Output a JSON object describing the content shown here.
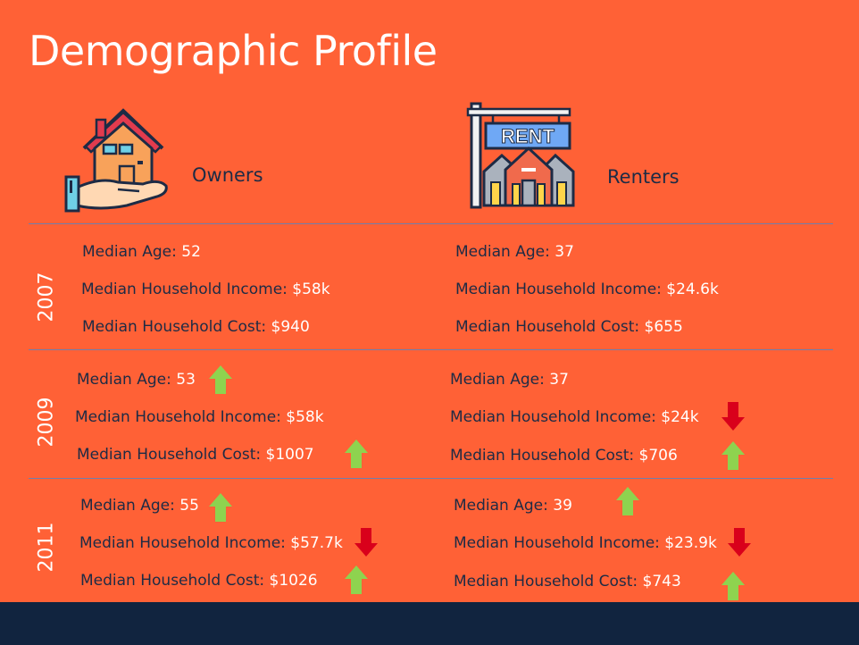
{
  "title": "Demographic Profile",
  "columns": {
    "owners": "Owners",
    "renters": "Renters"
  },
  "sign_text": "RENT",
  "years": [
    "2007",
    "2009",
    "2011"
  ],
  "labels": {
    "age": "Median Age:",
    "income": "Median Household Income:",
    "cost": "Median Household Cost:"
  },
  "owners": {
    "2007": {
      "age": "52",
      "income": "$58k",
      "cost": "$940"
    },
    "2009": {
      "age": "53",
      "income": "$58k",
      "cost": "$1007"
    },
    "2011": {
      "age": "55",
      "income": "$57.7k",
      "cost": "$1026"
    }
  },
  "renters": {
    "2007": {
      "age": "37",
      "income": "$24.6k",
      "cost": "$655"
    },
    "2009": {
      "age": "37",
      "income": "$24k",
      "cost": "$706"
    },
    "2011": {
      "age": "39",
      "income": "$23.9k",
      "cost": "$743"
    }
  },
  "trends": {
    "owners_2009": {
      "age": "up",
      "income": "none",
      "cost": "up"
    },
    "owners_2011": {
      "age": "up",
      "income": "down",
      "cost": "up"
    },
    "renters_2009": {
      "age": "none",
      "income": "down",
      "cost": "up"
    },
    "renters_2011": {
      "age": "up",
      "income": "down",
      "cost": "up"
    }
  },
  "colors": {
    "background": "#ff6136",
    "up_arrow": "#8ed34f",
    "down_arrow": "#d9001b",
    "footer": "#11243f"
  }
}
